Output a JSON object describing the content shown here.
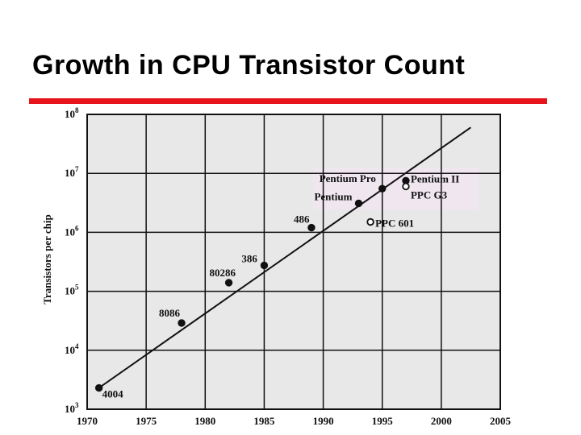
{
  "slide": {
    "title": "Growth in CPU Transistor Count"
  },
  "colors": {
    "accent_rule": "#e8141b",
    "plot_bg": "#e8e8e8",
    "highlight_bg": "#efe6ef",
    "line": "#111111"
  },
  "chart_data": {
    "type": "scatter",
    "title": "",
    "xlabel": "",
    "ylabel": "Transistors per chip",
    "xlim": [
      1970,
      2005
    ],
    "ylim": [
      1000,
      100000000
    ],
    "y_scale": "log",
    "grid": true,
    "x_ticks": [
      "1970",
      "1975",
      "1980",
      "1985",
      "1990",
      "1995",
      "2000",
      "2005"
    ],
    "y_ticks": [
      {
        "base": "10",
        "exp": "3"
      },
      {
        "base": "10",
        "exp": "4"
      },
      {
        "base": "10",
        "exp": "5"
      },
      {
        "base": "10",
        "exp": "6"
      },
      {
        "base": "10",
        "exp": "7"
      },
      {
        "base": "10",
        "exp": "8"
      }
    ],
    "trend_line": {
      "x": [
        1971,
        2002.5
      ],
      "y": [
        2300,
        60000000
      ]
    },
    "points": [
      {
        "label": "4004",
        "x": 1971,
        "y": 2300,
        "filled": true
      },
      {
        "label": "8086",
        "x": 1978,
        "y": 29000,
        "filled": true
      },
      {
        "label": "80286",
        "x": 1982,
        "y": 140000,
        "filled": true
      },
      {
        "label": "386",
        "x": 1985,
        "y": 275000,
        "filled": true
      },
      {
        "label": "486",
        "x": 1989,
        "y": 1200000,
        "filled": true
      },
      {
        "label": "Pentium",
        "x": 1993,
        "y": 3100000,
        "filled": true
      },
      {
        "label": "Pentium Pro",
        "x": 1995,
        "y": 5500000,
        "filled": true
      },
      {
        "label": "Pentium II",
        "x": 1997,
        "y": 7500000,
        "filled": true
      },
      {
        "label": "PPC 601",
        "x": 1994,
        "y": 1500000,
        "filled": false
      },
      {
        "label": "PPC G3",
        "x": 1997,
        "y": 6000000,
        "filled": false
      }
    ]
  }
}
